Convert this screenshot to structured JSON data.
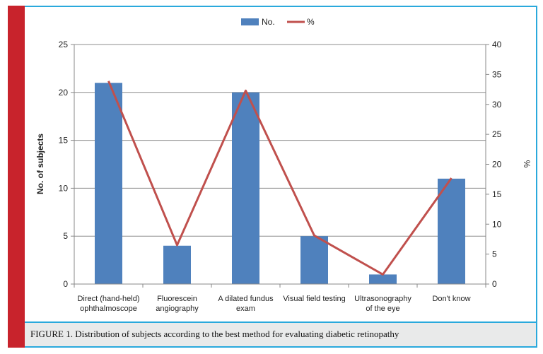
{
  "caption": "FIGURE 1. Distribution of subjects according to the best method for evaluating diabetic retinopathy",
  "chart_data": {
    "type": "bar",
    "categories": [
      [
        "Direct (hand-held)",
        "ophthalmoscope"
      ],
      [
        "Fluorescein",
        "angiography"
      ],
      [
        "A dilated fundus",
        "exam"
      ],
      [
        "Visual field testing"
      ],
      [
        "Ultrasonography",
        "of the eye"
      ],
      [
        "Don't know"
      ]
    ],
    "series": [
      {
        "name": "No.",
        "type": "bar",
        "axis": "left",
        "color": "#4f81bd",
        "values": [
          21,
          4,
          20,
          5,
          1,
          11
        ]
      },
      {
        "name": "%",
        "type": "line",
        "axis": "right",
        "color": "#c0504d",
        "values": [
          33.9,
          6.5,
          32.3,
          8.1,
          1.6,
          17.7
        ]
      }
    ],
    "ylabel": "No. of subjects",
    "y2label": "%",
    "ylim": [
      0,
      25
    ],
    "y2lim": [
      0,
      40
    ],
    "yticks": [
      "0",
      "5",
      "10",
      "15",
      "20",
      "25"
    ],
    "y2ticks": [
      "0",
      "5",
      "10",
      "15",
      "20",
      "25",
      "30",
      "35",
      "40"
    ],
    "grid": true,
    "legend_position": "top-center"
  }
}
